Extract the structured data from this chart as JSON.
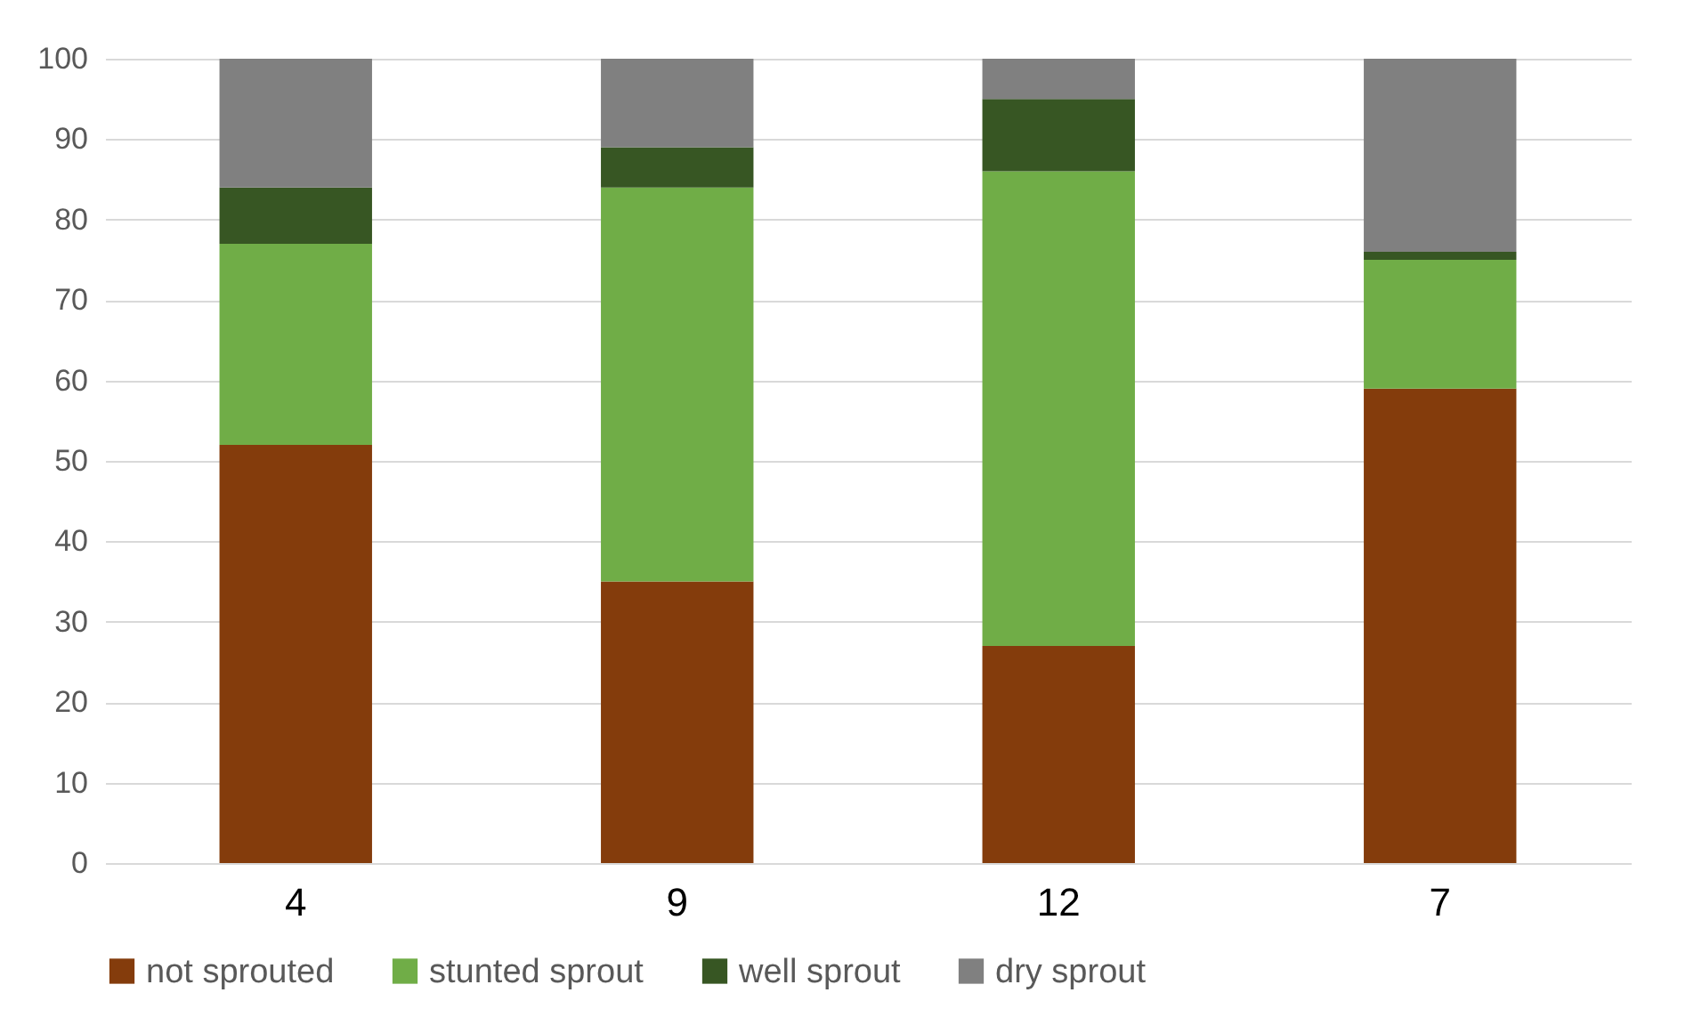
{
  "chart_data": {
    "type": "bar",
    "stacked": true,
    "categories": [
      "4",
      "9",
      "12",
      "7"
    ],
    "series": [
      {
        "name": "not sprouted",
        "color": "#843c0c",
        "values": [
          52,
          35,
          27,
          59
        ]
      },
      {
        "name": "stunted sprout",
        "color": "#70ad47",
        "values": [
          25,
          49,
          59,
          16
        ]
      },
      {
        "name": "well sprout",
        "color": "#375623",
        "values": [
          7,
          5,
          9,
          1
        ]
      },
      {
        "name": "dry sprout",
        "color": "#808080",
        "values": [
          16,
          11,
          5,
          24
        ]
      }
    ],
    "ylim": [
      0,
      100
    ],
    "yticks": [
      0,
      10,
      20,
      30,
      40,
      50,
      60,
      70,
      80,
      90,
      100
    ],
    "grid": "y",
    "legend": "bottom"
  }
}
